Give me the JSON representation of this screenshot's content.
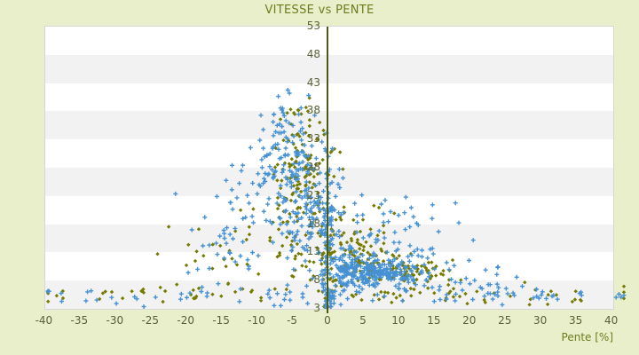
{
  "title": "VITESSE vs PENTE",
  "x_axis_title": "Pente [%]",
  "colors": {
    "background": "#e9efca",
    "plot_background": "#ffffff",
    "band_gray": "#f2f2f2",
    "plot_border": "#d6d6d6",
    "axis_line": "#4b5a14",
    "tick_label": "#566135",
    "title_text": "#6d7b1d",
    "series_blue": "#4691d4",
    "series_olive": "#757a00"
  },
  "chart_data": {
    "type": "scatter",
    "title": "VITESSE vs PENTE",
    "xlabel": "Pente [%]",
    "ylabel": "",
    "xlim": [
      -39.8,
      40.3
    ],
    "ylim": [
      3,
      53
    ],
    "x_ticks": [
      -40,
      -35,
      -30,
      -25,
      -20,
      -15,
      -10,
      -5,
      0,
      5,
      10,
      15,
      20,
      25,
      30,
      35,
      40
    ],
    "y_ticks": [
      3,
      8,
      13,
      18,
      23,
      28,
      33,
      38,
      43,
      48,
      53
    ],
    "grid": "alternating-horizontal-bands",
    "legend_position": "none",
    "zero_axis_line_x": 0,
    "seed": 20240613,
    "clamp": {
      "x": [
        -39.4,
        41.8
      ],
      "y": [
        3.4,
        43.2
      ]
    },
    "series": [
      {
        "name": "olive-diamond-series",
        "marker": "diamond",
        "marker_size_px": 4.4,
        "color": "#757a00",
        "clusters_format": [
          "pente_center",
          "vitesse_center",
          "pente_sd",
          "vitesse_sd",
          "n_points"
        ],
        "clusters": [
          [
            -3.5,
            26,
            2,
            4,
            70
          ],
          [
            -2.5,
            17,
            3,
            4.5,
            60
          ],
          [
            6.5,
            10.5,
            3.5,
            1.6,
            75
          ],
          [
            13,
            9.6,
            3,
            1.2,
            45
          ],
          [
            -2,
            5.6,
            18,
            0.9,
            60
          ],
          [
            0,
            12,
            0.6,
            6,
            30
          ],
          [
            -4,
            32.5,
            1.8,
            2.8,
            30
          ],
          [
            -4.5,
            38.5,
            1.2,
            1.2,
            8
          ],
          [
            -12,
            12,
            6,
            3,
            35
          ],
          [
            4,
            16,
            3,
            3.5,
            45
          ],
          [
            25,
            5.5,
            8,
            0.8,
            18
          ],
          [
            -30,
            5.4,
            6,
            0.7,
            12
          ]
        ]
      },
      {
        "name": "blue-plus-series",
        "marker": "plus",
        "marker_size_px": 5,
        "color": "#4691d4",
        "clusters_format": [
          "pente_center",
          "vitesse_center",
          "pente_sd",
          "vitesse_sd",
          "n_points"
        ],
        "clusters": [
          [
            3,
            10,
            1.5,
            2.2,
            90
          ],
          [
            6,
            9.5,
            2,
            1.3,
            90
          ],
          [
            9.5,
            9.2,
            2.2,
            0.9,
            70
          ],
          [
            -2,
            18,
            2.2,
            5,
            120
          ],
          [
            -5,
            29,
            2.5,
            4,
            80
          ],
          [
            -6,
            36.5,
            2,
            2.5,
            30
          ],
          [
            -9,
            22,
            3.5,
            6,
            60
          ],
          [
            -14,
            16,
            4,
            4,
            30
          ],
          [
            0,
            16,
            0.5,
            8,
            60
          ],
          [
            0.3,
            5,
            0.4,
            0.8,
            30
          ],
          [
            12,
            13,
            4,
            3.5,
            45
          ],
          [
            19,
            9,
            6,
            2.5,
            35
          ],
          [
            8,
            19,
            4,
            4,
            30
          ],
          [
            0,
            5.5,
            20,
            0.9,
            55
          ],
          [
            -25,
            5.3,
            8,
            0.7,
            12
          ],
          [
            30,
            5.5,
            6,
            0.8,
            15
          ],
          [
            41,
            5,
            0.5,
            0.4,
            2
          ]
        ]
      }
    ]
  }
}
